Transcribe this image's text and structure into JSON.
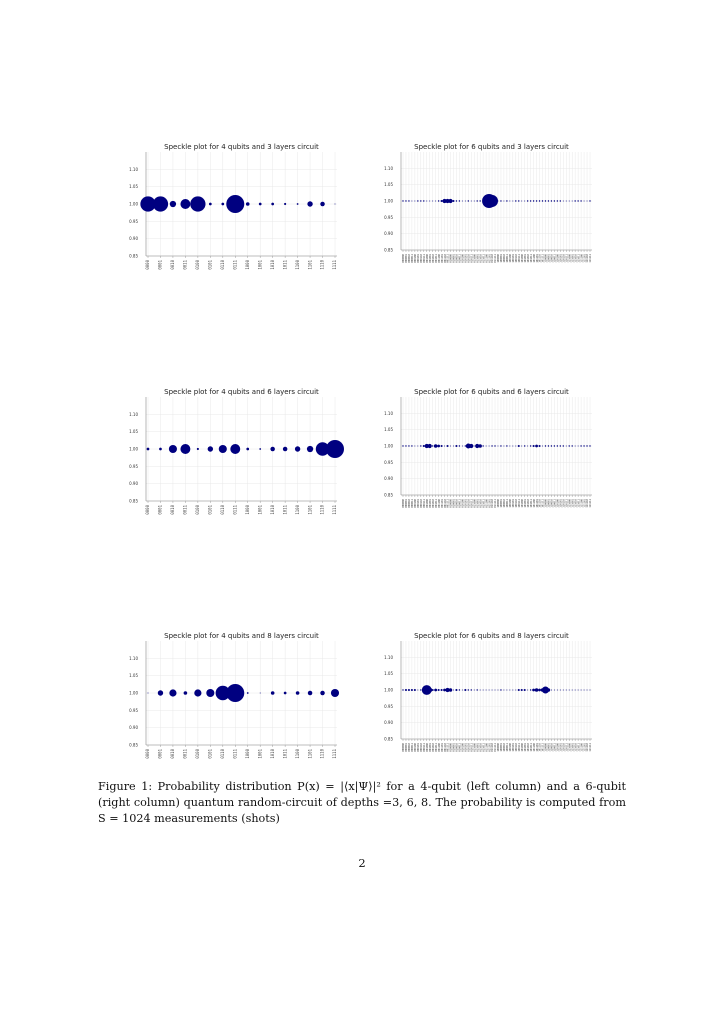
{
  "figure": {
    "caption_prefix": "Figure 1:",
    "caption_text": "Probability distribution P(x) = |⟨x|Ψ⟩|² for a 4-qubit (left column) and a 6-qubit (right column) quantum random-circuit of depths =3, 6, 8. The probability is computed from S = 1024 measurements (shots)"
  },
  "page_number": "2",
  "chart_data": [
    {
      "type": "scatter",
      "title": "Speckle plot for 4 qubits and 3 layers circuit",
      "x": [
        "0000",
        "0001",
        "0010",
        "0011",
        "0100",
        "0101",
        "0110",
        "0111",
        "1000",
        "1001",
        "1010",
        "1011",
        "1100",
        "1101",
        "1110",
        "1111"
      ],
      "y": 1.0,
      "sizes": [
        0.85,
        0.85,
        0.35,
        0.55,
        0.85,
        0.15,
        0.15,
        1.0,
        0.2,
        0.15,
        0.15,
        0.12,
        0.1,
        0.3,
        0.25,
        0.0
      ],
      "yticks": [
        "0.85",
        "0.90",
        "0.95",
        "1.00",
        "1.05",
        "1.10"
      ],
      "ylim": [
        0.85,
        1.15
      ],
      "grid": true,
      "color": "#000080"
    },
    {
      "type": "scatter",
      "title": "Speckle plot for 6 qubits and 3 layers circuit",
      "x": [
        "000000",
        "000001",
        "000010",
        "000011",
        "000100",
        "000101",
        "000110",
        "000111",
        "001000",
        "001001",
        "001010",
        "001011",
        "001100",
        "001101",
        "001110",
        "001111",
        "010000",
        "010001",
        "010010",
        "010011",
        "010100",
        "010101",
        "010110",
        "010111",
        "011000",
        "011001",
        "011010",
        "011011",
        "011100",
        "011101",
        "011110",
        "011111",
        "100000",
        "100001",
        "100010",
        "100011",
        "100100",
        "100101",
        "100110",
        "100111",
        "101000",
        "101001",
        "101010",
        "101011",
        "101100",
        "101101",
        "101110",
        "101111",
        "110000",
        "110001",
        "110010",
        "110011",
        "110100",
        "110101",
        "110110",
        "110111",
        "111000",
        "111001",
        "111010",
        "111011",
        "111100",
        "111101",
        "111110",
        "111111"
      ],
      "y": 1.0,
      "sizes": [
        0.1,
        0.1,
        0.1,
        0,
        0,
        0.05,
        0.05,
        0.05,
        0,
        0,
        0,
        0,
        0.1,
        0.15,
        0.3,
        0.3,
        0.3,
        0.15,
        0.1,
        0.1,
        0,
        0,
        0.1,
        0,
        0,
        0.05,
        0.1,
        0,
        0,
        1.0,
        0.85,
        0,
        0,
        0.1,
        0,
        0.1,
        0,
        0,
        0.1,
        0.1,
        0,
        0,
        0.05,
        0.1,
        0.1,
        0.1,
        0.1,
        0.1,
        0.1,
        0.1,
        0.1,
        0.1,
        0.1,
        0.1,
        0,
        0,
        0,
        0,
        0.1,
        0.1,
        0.1,
        0,
        0,
        0.1
      ],
      "yticks": [
        "0.85",
        "0.90",
        "0.95",
        "1.00",
        "1.05",
        "1.10"
      ],
      "ylim": [
        0.85,
        1.15
      ],
      "grid": true,
      "color": "#000080"
    },
    {
      "type": "scatter",
      "title": "Speckle plot for 4 qubits and 6 layers circuit",
      "x": [
        "0000",
        "0001",
        "0010",
        "0011",
        "0100",
        "0101",
        "0110",
        "0111",
        "1000",
        "1001",
        "1010",
        "1011",
        "1100",
        "1101",
        "1110",
        "1111"
      ],
      "y": 1.0,
      "sizes": [
        0.15,
        0.15,
        0.45,
        0.55,
        0.12,
        0.3,
        0.45,
        0.55,
        0.15,
        0.1,
        0.25,
        0.25,
        0.3,
        0.35,
        0.75,
        1.0
      ],
      "yticks": [
        "0.85",
        "0.90",
        "0.95",
        "1.00",
        "1.05",
        "1.10"
      ],
      "ylim": [
        0.85,
        1.15
      ],
      "grid": true,
      "color": "#000080"
    },
    {
      "type": "scatter",
      "title": "Speckle plot for 6 qubits and 6 layers circuit",
      "x": [
        "000000",
        "000001",
        "000010",
        "000011",
        "000100",
        "000101",
        "000110",
        "000111",
        "001000",
        "001001",
        "001010",
        "001011",
        "001100",
        "001101",
        "001110",
        "001111",
        "010000",
        "010001",
        "010010",
        "010011",
        "010100",
        "010101",
        "010110",
        "010111",
        "011000",
        "011001",
        "011010",
        "011011",
        "011100",
        "011101",
        "011110",
        "011111",
        "100000",
        "100001",
        "100010",
        "100011",
        "100100",
        "100101",
        "100110",
        "100111",
        "101000",
        "101001",
        "101010",
        "101011",
        "101100",
        "101101",
        "101110",
        "101111",
        "110000",
        "110001",
        "110010",
        "110011",
        "110100",
        "110101",
        "110110",
        "110111",
        "111000",
        "111001",
        "111010",
        "111011",
        "111100",
        "111101",
        "111110",
        "111111"
      ],
      "y": 1.0,
      "sizes": [
        0.1,
        0.1,
        0.1,
        0.05,
        0,
        0,
        0.1,
        0.15,
        0.3,
        0.3,
        0.1,
        0.25,
        0.2,
        0.15,
        0,
        0.15,
        0,
        0,
        0.15,
        0.1,
        0,
        0.1,
        0.35,
        0.3,
        0,
        0.3,
        0.25,
        0.05,
        0,
        0,
        0.05,
        0.05,
        0,
        0.05,
        0,
        0.05,
        0,
        0,
        0,
        0.15,
        0,
        0.05,
        0,
        0.1,
        0.15,
        0.2,
        0.15,
        0,
        0.1,
        0.1,
        0.05,
        0.05,
        0.05,
        0.05,
        0.05,
        0,
        0.05,
        0.05,
        0,
        0,
        0.05,
        0.05,
        0.05,
        0.05
      ],
      "yticks": [
        "0.85",
        "0.90",
        "0.95",
        "1.00",
        "1.05",
        "1.10"
      ],
      "ylim": [
        0.85,
        1.15
      ],
      "grid": true,
      "color": "#000080"
    },
    {
      "type": "scatter",
      "title": "Speckle plot for 4 qubits and 8 layers circuit",
      "x": [
        "0000",
        "0001",
        "0010",
        "0011",
        "0100",
        "0101",
        "0110",
        "0111",
        "1000",
        "1001",
        "1010",
        "1011",
        "1100",
        "1101",
        "1110",
        "1111"
      ],
      "y": 1.0,
      "sizes": [
        0.0,
        0.3,
        0.4,
        0.2,
        0.4,
        0.45,
        0.8,
        1.0,
        0.1,
        0.0,
        0.2,
        0.15,
        0.2,
        0.25,
        0.25,
        0.45
      ],
      "yticks": [
        "0.85",
        "0.90",
        "0.95",
        "1.00",
        "1.05",
        "1.10"
      ],
      "ylim": [
        0.85,
        1.15
      ],
      "grid": true,
      "color": "#000080"
    },
    {
      "type": "scatter",
      "title": "Speckle plot for 6 qubits and 8 layers circuit",
      "x": [
        "000000",
        "000001",
        "000010",
        "000011",
        "000100",
        "000101",
        "000110",
        "000111",
        "001000",
        "001001",
        "001010",
        "001011",
        "001100",
        "001101",
        "001110",
        "001111",
        "010000",
        "010001",
        "010010",
        "010011",
        "010100",
        "010101",
        "010110",
        "010111",
        "011000",
        "011001",
        "011010",
        "011011",
        "011100",
        "011101",
        "011110",
        "011111",
        "100000",
        "100001",
        "100010",
        "100011",
        "100100",
        "100101",
        "100110",
        "100111",
        "101000",
        "101001",
        "101010",
        "101011",
        "101100",
        "101101",
        "101110",
        "101111",
        "110000",
        "110001",
        "110010",
        "110011",
        "110100",
        "110101",
        "110110",
        "110111",
        "111000",
        "111001",
        "111010",
        "111011",
        "111100",
        "111101",
        "111110",
        "111111"
      ],
      "y": 1.0,
      "sizes": [
        0.1,
        0.15,
        0.15,
        0.15,
        0.15,
        0,
        0.1,
        0.25,
        0.7,
        0.35,
        0.15,
        0.2,
        0.15,
        0.15,
        0.2,
        0.3,
        0.25,
        0,
        0.15,
        0.1,
        0,
        0.15,
        0.1,
        0.1,
        0,
        0.1,
        0,
        0,
        0,
        0,
        0,
        0,
        0,
        0.1,
        0,
        0,
        0,
        0,
        0,
        0.15,
        0.15,
        0.15,
        0,
        0.1,
        0.2,
        0.25,
        0.2,
        0.25,
        0.5,
        0.25,
        0,
        0,
        0,
        0,
        0,
        0,
        0,
        0,
        0,
        0,
        0,
        0,
        0,
        0
      ],
      "yticks": [
        "0.85",
        "0.90",
        "0.95",
        "1.00",
        "1.05",
        "1.10"
      ],
      "ylim": [
        0.85,
        1.15
      ],
      "grid": true,
      "color": "#000080"
    }
  ]
}
